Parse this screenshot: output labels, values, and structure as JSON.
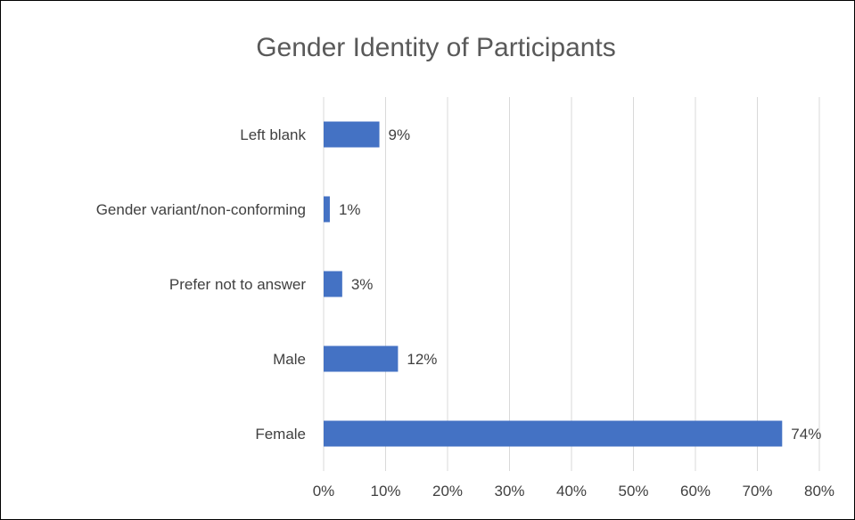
{
  "chart_data": {
    "type": "bar",
    "orientation": "horizontal",
    "title": "Gender Identity of Participants",
    "categories": [
      "Left blank",
      "Gender variant/non-conforming",
      "Prefer not to answer",
      "Male",
      "Female"
    ],
    "values": [
      9,
      1,
      3,
      12,
      74
    ],
    "value_labels": [
      "9%",
      "1%",
      "3%",
      "12%",
      "74%"
    ],
    "xlim": [
      0,
      80
    ],
    "x_ticks": [
      0,
      10,
      20,
      30,
      40,
      50,
      60,
      70,
      80
    ],
    "x_tick_labels": [
      "0%",
      "10%",
      "20%",
      "30%",
      "40%",
      "50%",
      "60%",
      "70%",
      "80%"
    ],
    "grid": true,
    "legend": "none",
    "bar_color": "#4472C4",
    "grid_color": "#D9D9D9"
  }
}
